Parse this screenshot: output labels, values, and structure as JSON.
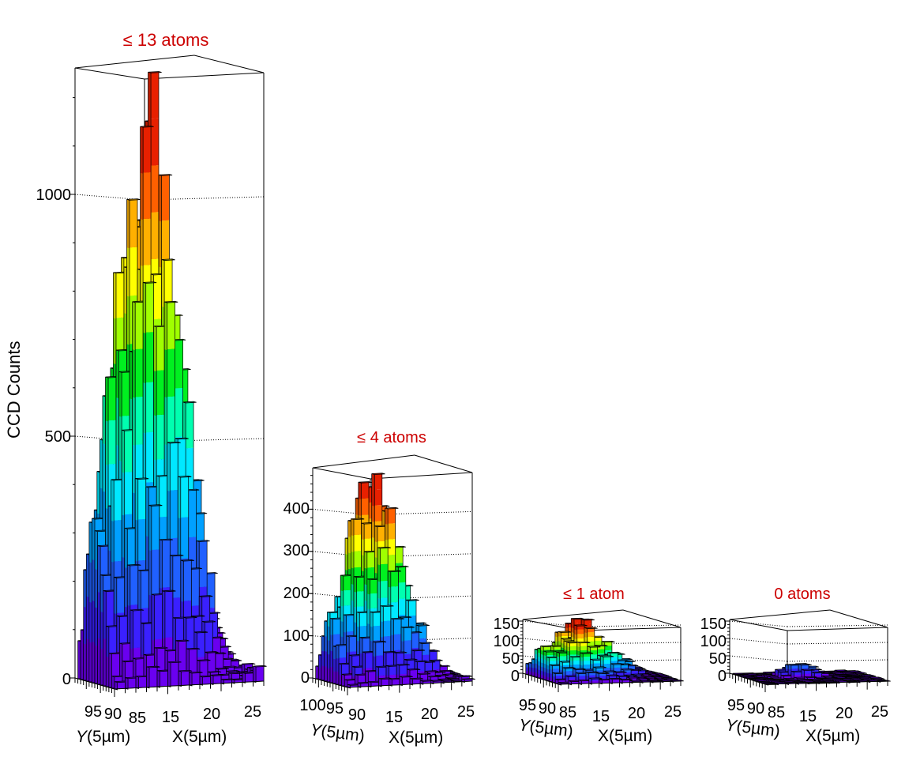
{
  "y_axis_label": "CCD Counts",
  "y_axis_label_italic_y": "Y",
  "axis_unit_y": "(5µm)",
  "axis_unit_x": "X(5µm)",
  "title_color": "#cc0000",
  "colormap": [
    "#6a00f0",
    "#3a20ff",
    "#2060ff",
    "#00a0ff",
    "#00e8ff",
    "#00ffb0",
    "#00f020",
    "#a0ff00",
    "#ffff00",
    "#ffb000",
    "#ff6000",
    "#e82000"
  ],
  "chart_data": [
    {
      "type": "lego3d",
      "title": "≤ 13 atoms",
      "zlabel": "CCD Counts",
      "xlabel": "X(5µm)",
      "ylabel": "Y(5µm)",
      "zlim": [
        0,
        1250
      ],
      "z_ticks": [
        0,
        500,
        1000
      ],
      "x_ticks": [
        "15",
        "20",
        "25"
      ],
      "y_ticks": [
        "95",
        "90",
        "85"
      ],
      "peak_counts": [
        1145,
        840,
        745,
        720,
        600,
        460,
        460,
        270,
        250,
        165,
        120,
        80,
        55,
        40,
        25
      ]
    },
    {
      "type": "lego3d",
      "title": "≤ 4 atoms",
      "zlim": [
        0,
        490
      ],
      "z_ticks": [
        0,
        100,
        200,
        300,
        400
      ],
      "x_ticks": [
        "15",
        "20",
        "25"
      ],
      "y_ticks": [
        "100",
        "95",
        "90"
      ],
      "peak_counts": [
        450,
        445,
        335,
        330,
        190,
        160,
        140,
        100,
        75,
        50,
        30
      ]
    },
    {
      "type": "lego3d",
      "title": "≤ 1 atom",
      "zlim": [
        0,
        160
      ],
      "z_ticks": [
        0,
        50,
        100,
        150
      ],
      "x_ticks": [
        "15",
        "20",
        "25"
      ],
      "y_ticks": [
        "95",
        "90",
        "85"
      ],
      "peak_counts": [
        150,
        130,
        125,
        110,
        95,
        80,
        70,
        55,
        45,
        30,
        20
      ]
    },
    {
      "type": "lego3d",
      "title": "0 atoms",
      "zlim": [
        0,
        160
      ],
      "z_ticks": [
        0,
        50,
        100,
        150
      ],
      "x_ticks": [
        "15",
        "20",
        "25"
      ],
      "y_ticks": [
        "95",
        "90",
        "85"
      ],
      "peak_counts": [
        45,
        40,
        30,
        25,
        20,
        15,
        12
      ]
    }
  ]
}
